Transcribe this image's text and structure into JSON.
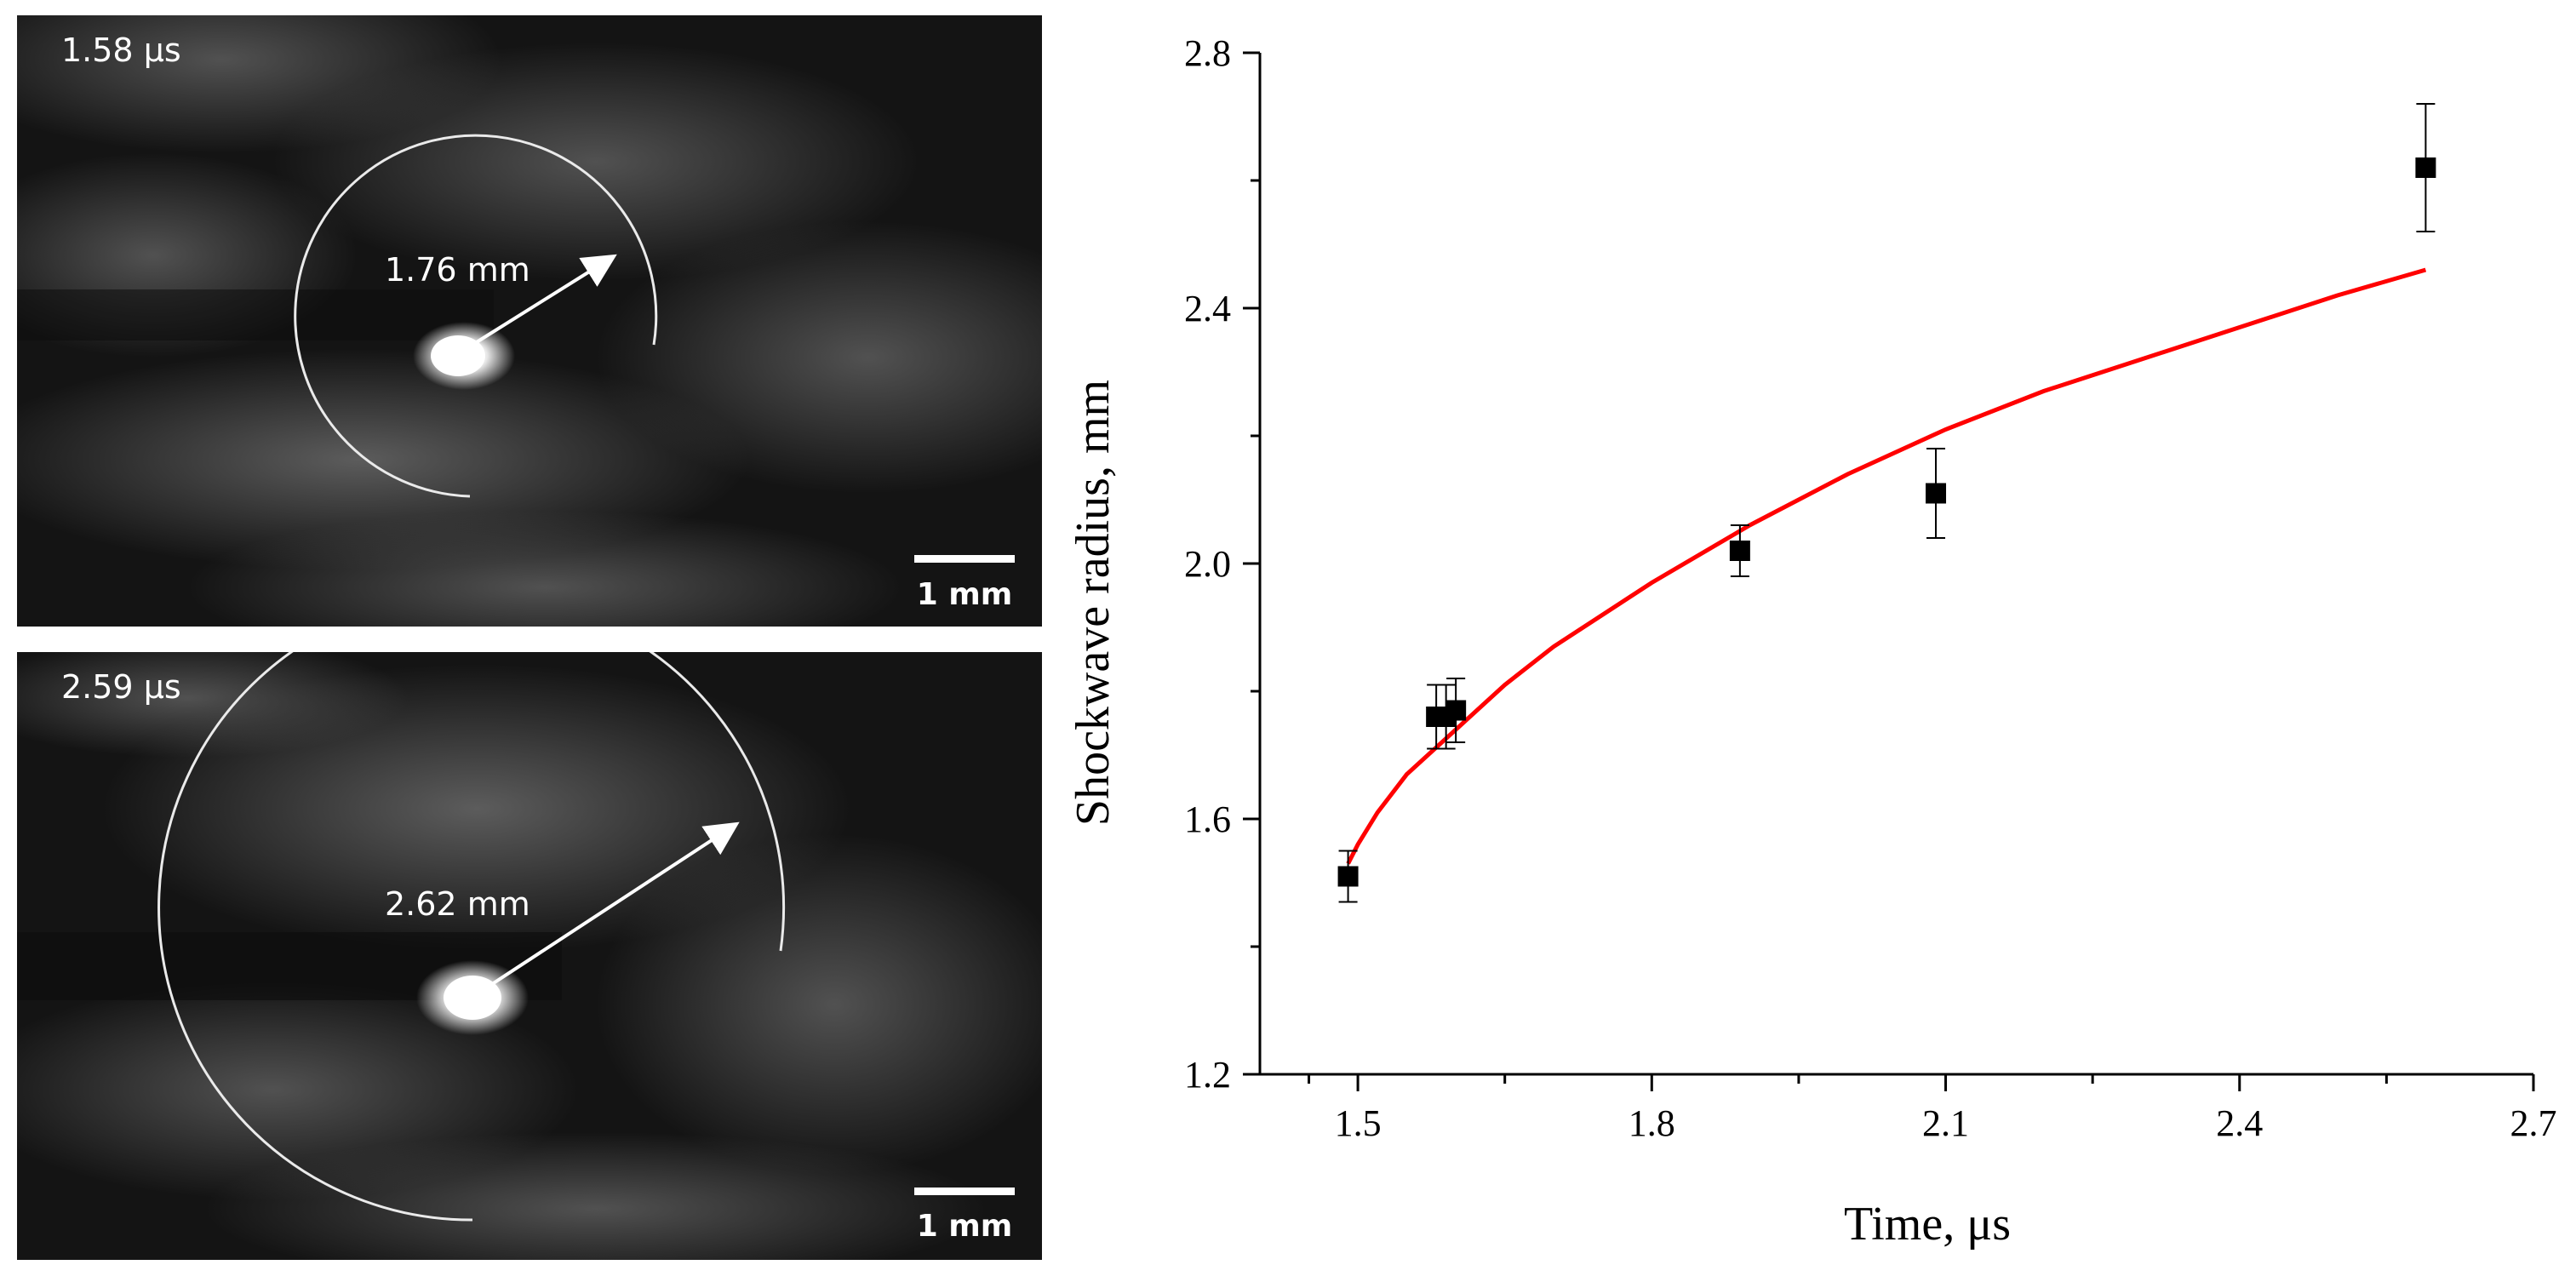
{
  "panels": [
    {
      "time_label": "1.58 μs",
      "radius_label": "1.76 mm",
      "scalebar_label": "1 mm"
    },
    {
      "time_label": "2.59 μs",
      "radius_label": "2.62 mm",
      "scalebar_label": "1 mm"
    }
  ],
  "chart_data": {
    "type": "scatter",
    "xlabel": "Time, μs",
    "ylabel": "Shockwave radius, mm",
    "xlim": [
      1.4,
      2.7
    ],
    "ylim": [
      1.2,
      2.8
    ],
    "x_ticks": [
      "1.5",
      "1.8",
      "2.1",
      "2.4",
      "2.7"
    ],
    "y_ticks": [
      "1.2",
      "1.6",
      "2.0",
      "2.4",
      "2.8"
    ],
    "grid": false,
    "legend": "none",
    "marker_color": "#000000",
    "fit_color": "#ff0000",
    "series": [
      {
        "kind": "points",
        "x": [
          1.49,
          1.58,
          1.59,
          1.6,
          1.89,
          2.09,
          2.59
        ],
        "y": [
          1.51,
          1.76,
          1.76,
          1.77,
          2.02,
          2.11,
          2.62
        ],
        "yerr": [
          0.04,
          0.05,
          0.05,
          0.05,
          0.04,
          0.07,
          0.1
        ]
      },
      {
        "kind": "fit-line",
        "x": [
          1.49,
          1.5,
          1.52,
          1.55,
          1.6,
          1.65,
          1.7,
          1.8,
          1.9,
          2.0,
          2.1,
          2.2,
          2.3,
          2.4,
          2.5,
          2.59
        ],
        "y": [
          1.53,
          1.56,
          1.61,
          1.67,
          1.74,
          1.81,
          1.87,
          1.97,
          2.06,
          2.14,
          2.21,
          2.27,
          2.32,
          2.37,
          2.42,
          2.46
        ]
      }
    ]
  }
}
